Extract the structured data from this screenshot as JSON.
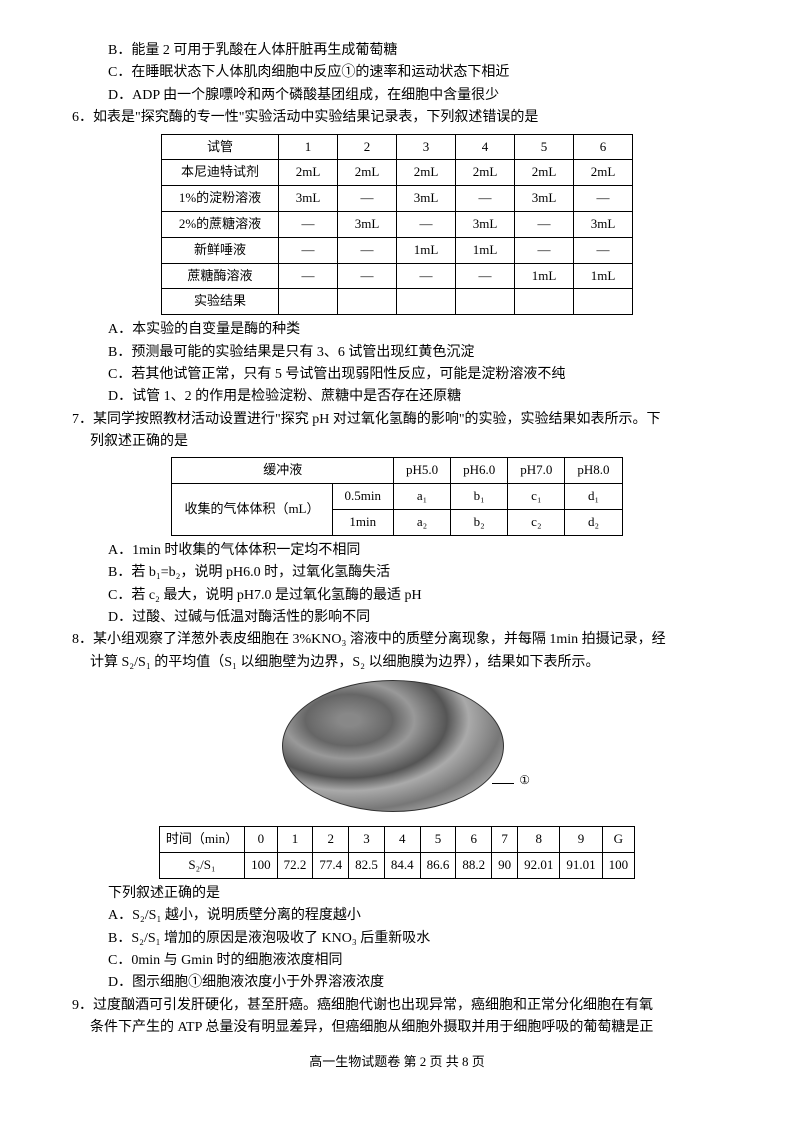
{
  "opts_top": {
    "B": "B．能量 2 可用于乳酸在人体肝脏再生成葡萄糖",
    "C": "C．在睡眠状态下人体肌肉细胞中反应①的速率和运动状态下相近",
    "D": "D．ADP 由一个腺嘌呤和两个磷酸基团组成，在细胞中含量很少"
  },
  "q6": {
    "stem": "6．如表是\"探究酶的专一性\"实验活动中实验结果记录表，下列叙述错误的是",
    "table": {
      "cols": [
        "试管",
        "1",
        "2",
        "3",
        "4",
        "5",
        "6"
      ],
      "rows": [
        [
          "本尼迪特试剂",
          "2mL",
          "2mL",
          "2mL",
          "2mL",
          "2mL",
          "2mL"
        ],
        [
          "1%的淀粉溶液",
          "3mL",
          "—",
          "3mL",
          "—",
          "3mL",
          "—"
        ],
        [
          "2%的蔗糖溶液",
          "—",
          "3mL",
          "—",
          "3mL",
          "—",
          "3mL"
        ],
        [
          "新鲜唾液",
          "—",
          "—",
          "1mL",
          "1mL",
          "—",
          "—"
        ],
        [
          "蔗糖酶溶液",
          "—",
          "—",
          "—",
          "—",
          "1mL",
          "1mL"
        ],
        [
          "实验结果",
          "",
          "",
          "",
          "",
          "",
          ""
        ]
      ]
    },
    "A": "A．本实验的自变量是酶的种类",
    "B": "B．预测最可能的实验结果是只有 3、6 试管出现红黄色沉淀",
    "C": "C．若其他试管正常，只有 5 号试管出现弱阳性反应，可能是淀粉溶液不纯",
    "D": "D．试管 1、2 的作用是检验淀粉、蔗糖中是否存在还原糖"
  },
  "q7": {
    "stem1": "7．某同学按照教材活动设置进行\"探究 pH 对过氧化氢酶的影响\"的实验，实验结果如表所示。下",
    "stem2": "列叙述正确的是",
    "table": {
      "head": [
        "缓冲液",
        "pH5.0",
        "pH6.0",
        "pH7.0",
        "pH8.0"
      ],
      "rowspan_label": "收集的气体体积（mL）",
      "r1": [
        "0.5min",
        "a₁",
        "b₁",
        "c₁",
        "d₁"
      ],
      "r2": [
        "1min",
        "a₂",
        "b₂",
        "c₂",
        "d₂"
      ]
    },
    "A": "A．1min 时收集的气体体积一定均不相同",
    "B": "B．若 b₁=b₂，说明 pH6.0 时，过氧化氢酶失活",
    "C": "C．若 c₂ 最大，说明 pH7.0 是过氧化氢酶的最适 pH",
    "D": "D．过酸、过碱与低温对酶活性的影响不同"
  },
  "q8": {
    "stem1": "8．某小组观察了洋葱外表皮细胞在 3%KNO₃ 溶液中的质壁分离现象，并每隔 1min 拍摄记录，经",
    "stem2": "计算 S₂/S₁ 的平均值（S₁ 以细胞壁为边界，S₂ 以细胞膜为边界），结果如下表所示。",
    "img_label": "①",
    "table": {
      "head": [
        "时间（min）",
        "0",
        "1",
        "2",
        "3",
        "4",
        "5",
        "6",
        "7",
        "8",
        "9",
        "G"
      ],
      "row": [
        "S₂/S₁",
        "100",
        "72.2",
        "77.4",
        "82.5",
        "84.4",
        "86.6",
        "88.2",
        "90",
        "92.01",
        "91.01",
        "100"
      ]
    },
    "lead": "下列叙述正确的是",
    "A": "A．S₂/S₁ 越小，说明质壁分离的程度越小",
    "B": "B．S₂/S₁ 增加的原因是液泡吸收了 KNO₃ 后重新吸水",
    "C": "C．0min 与 Gmin 时的细胞液浓度相同",
    "D": "D．图示细胞①细胞液浓度小于外界溶液浓度"
  },
  "q9": {
    "stem1": "9．过度酗酒可引发肝硬化，甚至肝癌。癌细胞代谢也出现异常，癌细胞和正常分化细胞在有氧",
    "stem2": "条件下产生的 ATP 总量没有明显差异，但癌细胞从细胞外摄取并用于细胞呼吸的葡萄糖是正"
  },
  "footer": "高一生物试题卷 第 2 页 共 8 页"
}
